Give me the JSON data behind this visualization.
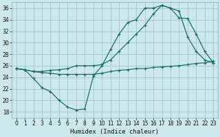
{
  "xlabel": "Humidex (Indice chaleur)",
  "bg_color": "#cde8ea",
  "grid_color": "#9dc8cc",
  "line_color": "#1a6e68",
  "xlim": [
    -0.5,
    23.5
  ],
  "ylim": [
    17.0,
    37.0
  ],
  "xticks": [
    0,
    1,
    2,
    3,
    4,
    5,
    6,
    7,
    8,
    9,
    10,
    11,
    12,
    13,
    14,
    15,
    16,
    17,
    18,
    19,
    20,
    21,
    22,
    23
  ],
  "yticks": [
    18,
    20,
    22,
    24,
    26,
    28,
    30,
    32,
    34,
    36
  ],
  "line1_x": [
    0,
    1,
    2,
    3,
    4,
    5,
    6,
    7,
    8,
    9,
    10,
    11,
    12,
    13,
    14,
    15,
    16,
    17,
    18,
    19,
    20,
    21,
    22,
    23
  ],
  "line1_y": [
    25.5,
    25.3,
    23.8,
    22.2,
    21.5,
    20.0,
    18.8,
    18.3,
    18.5,
    24.2,
    26.0,
    28.8,
    31.5,
    33.5,
    34.0,
    36.0,
    36.0,
    36.5,
    36.0,
    34.3,
    34.2,
    31.5,
    28.5,
    26.5
  ],
  "line2_x": [
    0,
    1,
    2,
    3,
    4,
    5,
    6,
    7,
    8,
    9,
    10,
    11,
    12,
    13,
    14,
    15,
    16,
    17,
    18,
    19,
    20,
    21,
    22,
    23
  ],
  "line2_y": [
    25.5,
    25.3,
    25.0,
    25.0,
    25.2,
    25.3,
    25.5,
    26.0,
    26.0,
    26.0,
    26.2,
    27.0,
    28.5,
    30.0,
    31.5,
    33.0,
    35.0,
    36.5,
    36.0,
    35.5,
    31.0,
    28.5,
    27.0,
    26.5
  ],
  "line3_x": [
    0,
    1,
    2,
    3,
    4,
    5,
    6,
    7,
    8,
    9,
    10,
    11,
    12,
    13,
    14,
    15,
    16,
    17,
    18,
    19,
    20,
    21,
    22,
    23
  ],
  "line3_y": [
    25.5,
    25.3,
    25.0,
    24.8,
    24.7,
    24.5,
    24.5,
    24.5,
    24.5,
    24.5,
    24.7,
    25.0,
    25.2,
    25.3,
    25.5,
    25.5,
    25.7,
    25.8,
    25.9,
    26.0,
    26.2,
    26.4,
    26.5,
    26.8
  ]
}
